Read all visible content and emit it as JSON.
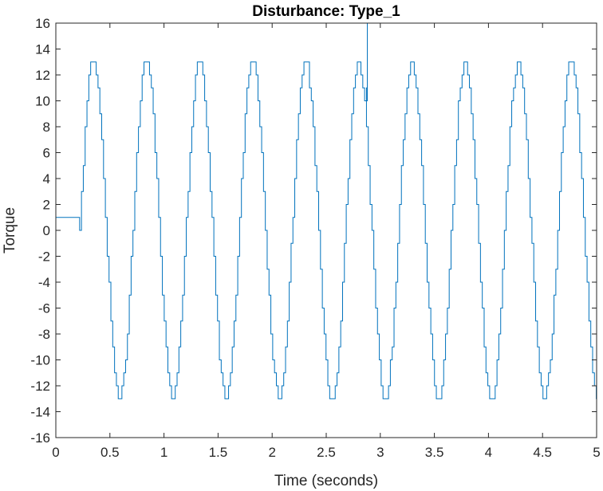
{
  "chart_data": {
    "type": "line",
    "title": "Disturbance: Type_1",
    "xlabel": "Time (seconds)",
    "ylabel": "Torque",
    "xlim": [
      0,
      5
    ],
    "ylim": [
      -16,
      16
    ],
    "xticks": [
      0,
      0.5,
      1,
      1.5,
      2,
      2.5,
      3,
      3.5,
      4,
      4.5,
      5
    ],
    "xtick_labels": [
      "0",
      "0.5",
      "1",
      "1.5",
      "2",
      "2.5",
      "3",
      "3.5",
      "4",
      "4.5",
      "5"
    ],
    "yticks": [
      -16,
      -14,
      -12,
      -10,
      -8,
      -6,
      -4,
      -2,
      0,
      2,
      4,
      6,
      8,
      10,
      12,
      14,
      16
    ],
    "ytick_labels": [
      "-16",
      "-14",
      "-12",
      "-10",
      "-8",
      "-6",
      "-4",
      "-2",
      "0",
      "2",
      "4",
      "6",
      "8",
      "10",
      "12",
      "14",
      "16"
    ],
    "grid": false,
    "line_color": "#0072BD",
    "series": [
      {
        "initial_hold": {
          "t_start": 0,
          "t_end": 0.22,
          "value": 1
        },
        "sine_start": 0.22,
        "amplitude": 13,
        "period": 0.491,
        "step_size": 0.017,
        "spikes": [
          {
            "t": 2.88,
            "from": 11,
            "to": 16
          }
        ]
      }
    ]
  }
}
